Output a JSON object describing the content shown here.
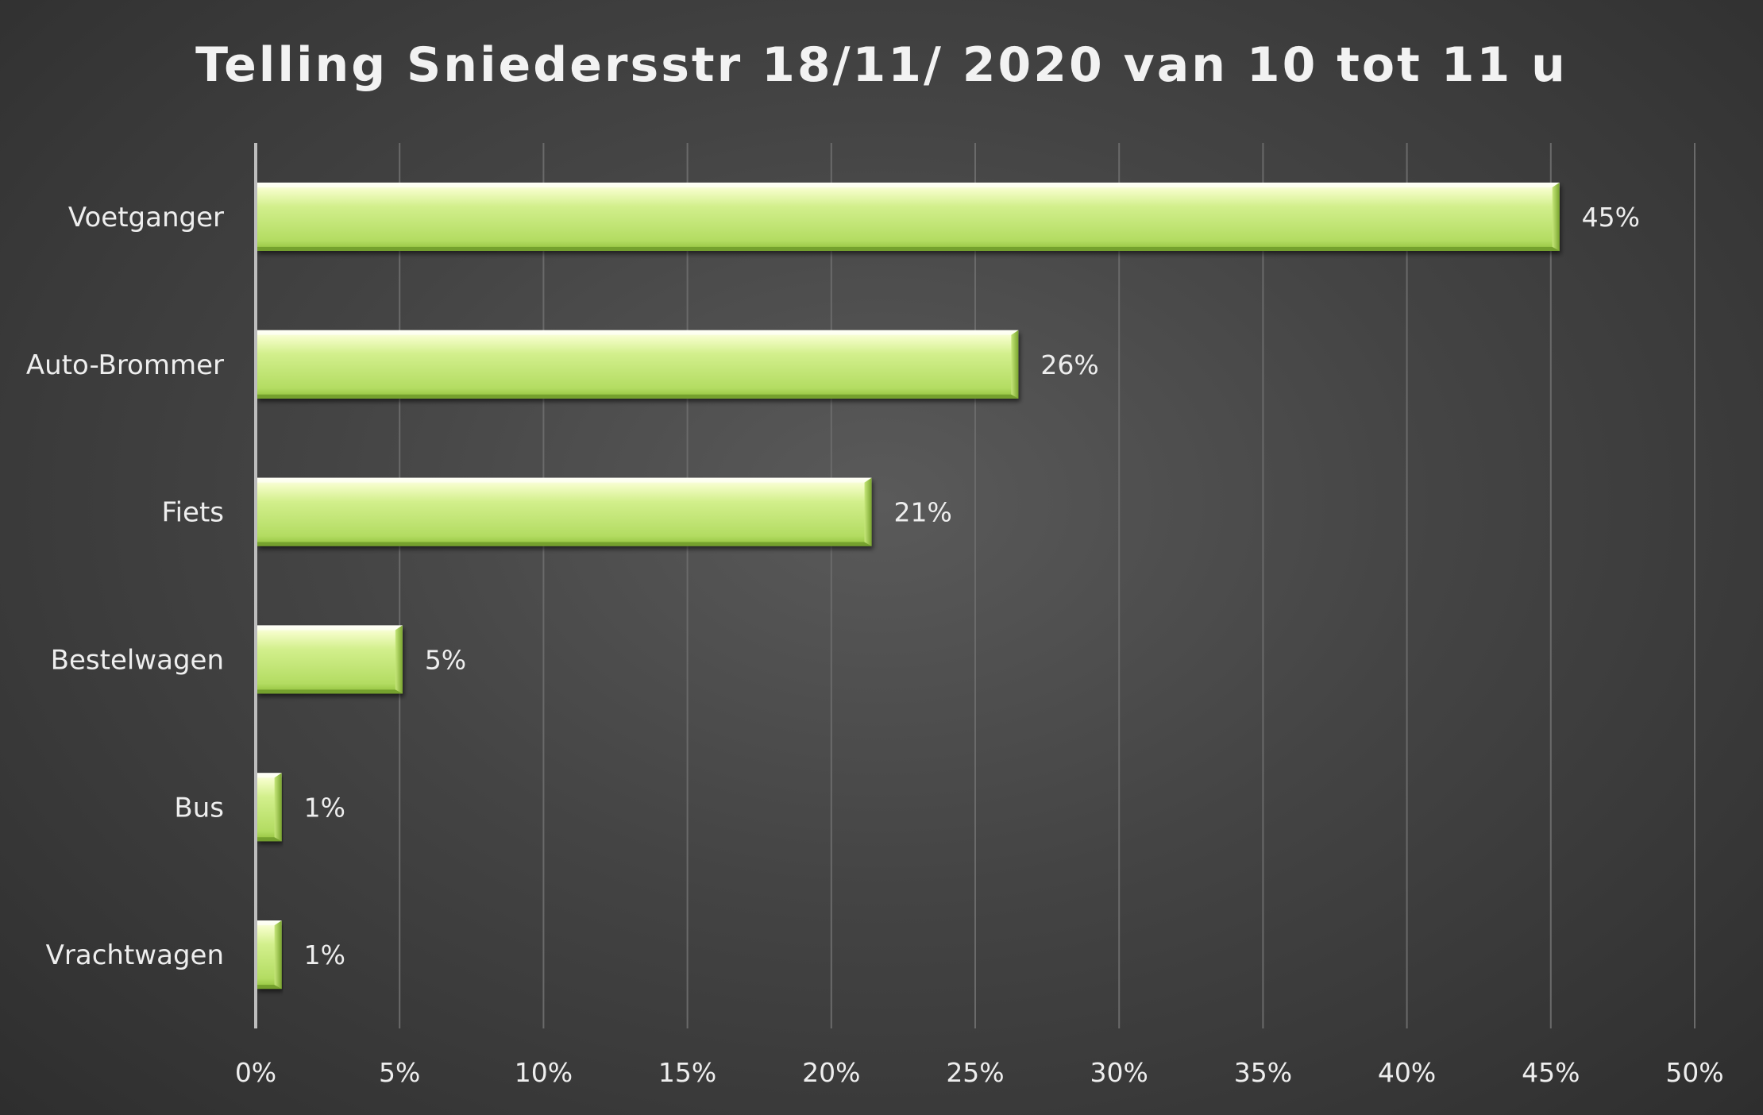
{
  "chart_data": {
    "type": "bar",
    "orientation": "horizontal",
    "title": "Telling Sniedersstr  18/11/ 2020 van 10 tot 11 u",
    "categories": [
      "Voetganger",
      "Auto-Brommer",
      "Fiets",
      "Bestelwagen",
      "Bus",
      "Vrachtwagen"
    ],
    "values": [
      45.3,
      26.5,
      21.4,
      5.1,
      0.9,
      0.9
    ],
    "data_labels": [
      "45%",
      "26%",
      "21%",
      "5%",
      "1%",
      "1%"
    ],
    "xlim": [
      0,
      50
    ],
    "x_ticks": [
      0,
      5,
      10,
      15,
      20,
      25,
      30,
      35,
      40,
      45,
      50
    ],
    "x_tick_labels": [
      "0%",
      "5%",
      "10%",
      "15%",
      "20%",
      "25%",
      "30%",
      "35%",
      "40%",
      "45%",
      "50%"
    ],
    "xlabel": "",
    "ylabel": "",
    "grid": "vertical",
    "legend": "none",
    "colors": {
      "bar_top": "#fbffe0",
      "bar_mid": "#c9ec7c",
      "bar_bottom": "#8fbf3a",
      "bar_edge": "#6e9a2a",
      "text": "#eeeeee",
      "grid": "#6a6a6a",
      "axis": "#bdbdbd"
    }
  }
}
